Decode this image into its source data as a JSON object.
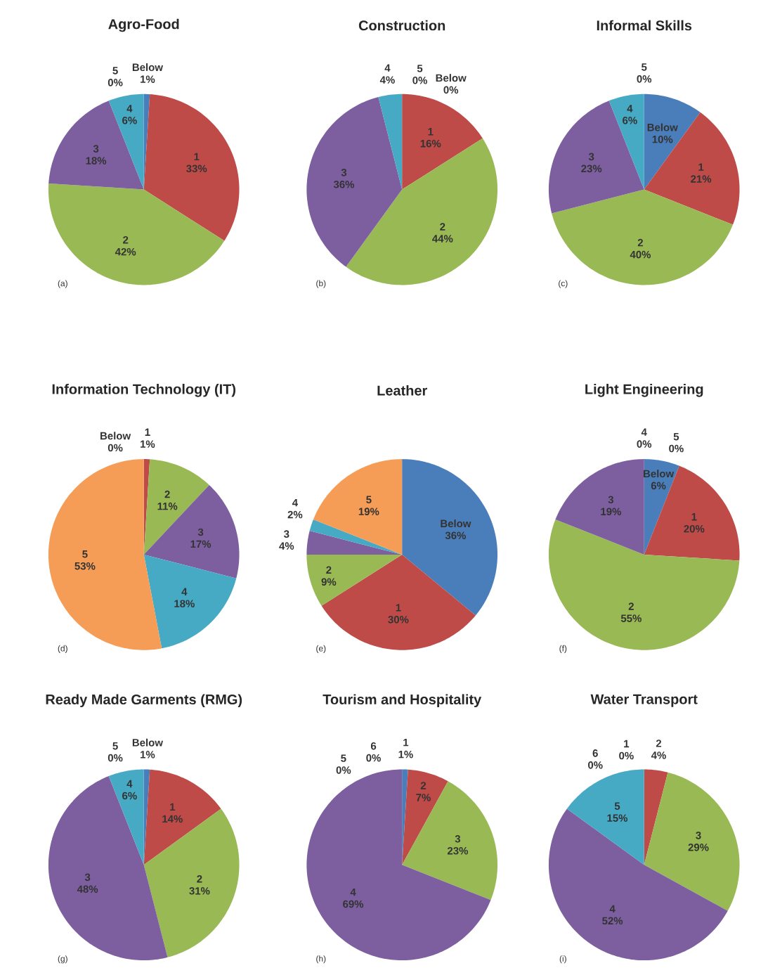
{
  "chart_data": [
    {
      "type": "pie",
      "title": "Agro-Food",
      "categories": [
        "Below",
        "1",
        "2",
        "3",
        "4",
        "5"
      ],
      "values": [
        1,
        33,
        42,
        18,
        6,
        0
      ],
      "value_labels": [
        "1%",
        "33%",
        "42%",
        "18%",
        "6%",
        "0%"
      ],
      "colors": [
        "#4a7ebb",
        "#be4b48",
        "#98b954",
        "#7d5fa0",
        "#46aac5",
        "#f59d56"
      ],
      "annotations": [
        "(a)"
      ]
    },
    {
      "type": "pie",
      "title": "Construction",
      "categories": [
        "Below",
        "1",
        "2",
        "3",
        "4",
        "5"
      ],
      "values": [
        0,
        16,
        44,
        36,
        4,
        0
      ],
      "value_labels": [
        "0%",
        "16%",
        "44%",
        "36%",
        "4%",
        "0%"
      ],
      "colors": [
        "#4a7ebb",
        "#be4b48",
        "#98b954",
        "#7d5fa0",
        "#46aac5",
        "#f59d56"
      ],
      "annotations": [
        "(b)"
      ]
    },
    {
      "type": "pie",
      "title": "Informal Skills",
      "categories": [
        "Below",
        "1",
        "2",
        "3",
        "4",
        "5"
      ],
      "values": [
        10,
        21,
        40,
        23,
        6,
        0
      ],
      "value_labels": [
        "10%",
        "21%",
        "40%",
        "23%",
        "6%",
        "0%"
      ],
      "colors": [
        "#4a7ebb",
        "#be4b48",
        "#98b954",
        "#7d5fa0",
        "#46aac5",
        "#f59d56"
      ],
      "annotations": [
        "(c)"
      ]
    },
    {
      "type": "pie",
      "title": "Information Technology (IT)",
      "categories": [
        "Below",
        "1",
        "2",
        "3",
        "4",
        "5"
      ],
      "values": [
        0,
        1,
        11,
        17,
        18,
        53
      ],
      "value_labels": [
        "0%",
        "1%",
        "11%",
        "17%",
        "18%",
        "53%"
      ],
      "colors": [
        "#4a7ebb",
        "#be4b48",
        "#98b954",
        "#7d5fa0",
        "#46aac5",
        "#f59d56"
      ],
      "annotations": [
        "(d)"
      ]
    },
    {
      "type": "pie",
      "title": "Leather",
      "categories": [
        "Below",
        "1",
        "2",
        "3",
        "4",
        "5"
      ],
      "values": [
        36,
        30,
        9,
        4,
        2,
        19
      ],
      "value_labels": [
        "36%",
        "30%",
        "9%",
        "4%",
        "2%",
        "19%"
      ],
      "colors": [
        "#4a7ebb",
        "#be4b48",
        "#98b954",
        "#7d5fa0",
        "#46aac5",
        "#f59d56"
      ],
      "annotations": [
        "(e)"
      ]
    },
    {
      "type": "pie",
      "title": "Light Engineering",
      "categories": [
        "Below",
        "1",
        "2",
        "3",
        "4",
        "5"
      ],
      "values": [
        6,
        20,
        55,
        19,
        0,
        0
      ],
      "value_labels": [
        "6%",
        "20%",
        "55%",
        "19%",
        "0%",
        "0%"
      ],
      "colors": [
        "#4a7ebb",
        "#be4b48",
        "#98b954",
        "#7d5fa0",
        "#46aac5",
        "#f59d56"
      ],
      "annotations": [
        "(f)"
      ]
    },
    {
      "type": "pie",
      "title": "Ready Made Garments (RMG)",
      "categories": [
        "Below",
        "1",
        "2",
        "3",
        "4",
        "5"
      ],
      "values": [
        1,
        14,
        31,
        48,
        6,
        0
      ],
      "value_labels": [
        "1%",
        "14%",
        "31%",
        "48%",
        "6%",
        "0%"
      ],
      "colors": [
        "#4a7ebb",
        "#be4b48",
        "#98b954",
        "#7d5fa0",
        "#46aac5",
        "#f59d56"
      ],
      "annotations": [
        "(g)"
      ]
    },
    {
      "type": "pie",
      "title": "Tourism and Hospitality",
      "categories": [
        "1",
        "2",
        "3",
        "4",
        "5",
        "6"
      ],
      "values": [
        1,
        7,
        23,
        69,
        0,
        0
      ],
      "value_labels": [
        "1%",
        "7%",
        "23%",
        "69%",
        "0%",
        "0%"
      ],
      "colors": [
        "#4a7ebb",
        "#be4b48",
        "#98b954",
        "#7d5fa0",
        "#46aac5",
        "#f59d56"
      ],
      "annotations": [
        "(h)"
      ]
    },
    {
      "type": "pie",
      "title": "Water Transport",
      "categories": [
        "1",
        "2",
        "3",
        "4",
        "5",
        "6"
      ],
      "values": [
        0,
        4,
        29,
        52,
        15,
        0
      ],
      "value_labels": [
        "0%",
        "4%",
        "29%",
        "52%",
        "15%",
        "0%"
      ],
      "colors": [
        "#4a7ebb",
        "#be4b48",
        "#98b954",
        "#7d5fa0",
        "#46aac5",
        "#f59d56"
      ],
      "annotations": [
        "(i)"
      ]
    }
  ]
}
